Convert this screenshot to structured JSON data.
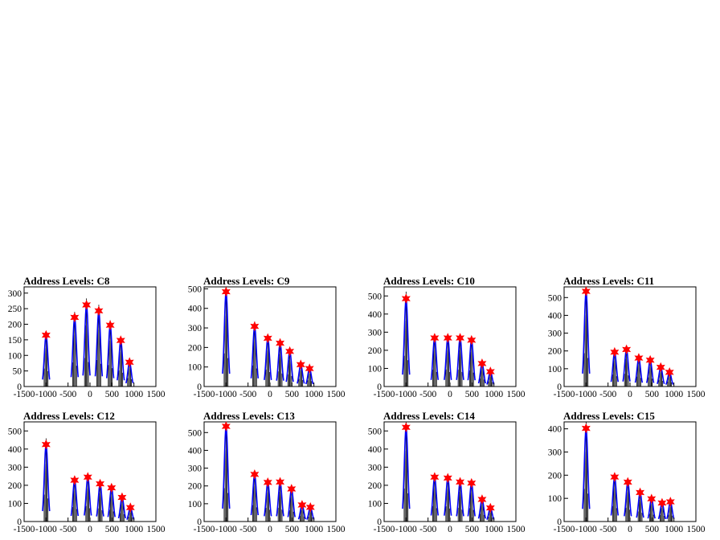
{
  "figure": {
    "background": "#ffffff",
    "colors": {
      "frame": "#000000",
      "histogram": "#000000",
      "fit": "#0000ff",
      "peak_marker": "#ff0000"
    }
  },
  "chart_data": [
    {
      "type": "line",
      "title": "Address Levels: C8",
      "xlim": [
        -1500,
        1500
      ],
      "ylim": [
        0,
        320
      ],
      "xticks": [
        -1500,
        -1000,
        -500,
        0,
        500,
        1000,
        1500
      ],
      "yticks": [
        0,
        50,
        100,
        150,
        200,
        250,
        300
      ],
      "peaks": [
        {
          "x": -1000,
          "y": 165
        },
        {
          "x": -350,
          "y": 222
        },
        {
          "x": -80,
          "y": 262
        },
        {
          "x": 200,
          "y": 243
        },
        {
          "x": 460,
          "y": 197
        },
        {
          "x": 700,
          "y": 148
        },
        {
          "x": 900,
          "y": 78
        }
      ]
    },
    {
      "type": "line",
      "title": "Address Levels: C9",
      "xlim": [
        -1500,
        1500
      ],
      "ylim": [
        0,
        510
      ],
      "xticks": [
        -1500,
        -1000,
        -500,
        0,
        500,
        1000,
        1500
      ],
      "yticks": [
        0,
        100,
        200,
        300,
        400,
        500
      ],
      "peaks": [
        {
          "x": -1000,
          "y": 485
        },
        {
          "x": -350,
          "y": 308
        },
        {
          "x": -50,
          "y": 247
        },
        {
          "x": 230,
          "y": 222
        },
        {
          "x": 450,
          "y": 180
        },
        {
          "x": 700,
          "y": 112
        },
        {
          "x": 900,
          "y": 92
        }
      ]
    },
    {
      "type": "line",
      "title": "Address Levels: C10",
      "xlim": [
        -1500,
        1500
      ],
      "ylim": [
        0,
        550
      ],
      "xticks": [
        -1500,
        -1000,
        -500,
        0,
        500,
        1000,
        1500
      ],
      "yticks": [
        0,
        100,
        200,
        300,
        400,
        500
      ],
      "peaks": [
        {
          "x": -1000,
          "y": 485
        },
        {
          "x": -350,
          "y": 268
        },
        {
          "x": -50,
          "y": 268
        },
        {
          "x": 230,
          "y": 268
        },
        {
          "x": 490,
          "y": 256
        },
        {
          "x": 730,
          "y": 127
        },
        {
          "x": 920,
          "y": 82
        }
      ]
    },
    {
      "type": "line",
      "title": "Address Levels: C11",
      "xlim": [
        -1500,
        1500
      ],
      "ylim": [
        0,
        560
      ],
      "xticks": [
        -1500,
        -1000,
        -500,
        0,
        500,
        1000,
        1500
      ],
      "yticks": [
        0,
        100,
        200,
        300,
        400,
        500
      ],
      "peaks": [
        {
          "x": -1000,
          "y": 535
        },
        {
          "x": -350,
          "y": 193
        },
        {
          "x": -80,
          "y": 208
        },
        {
          "x": 200,
          "y": 160
        },
        {
          "x": 460,
          "y": 148
        },
        {
          "x": 700,
          "y": 108
        },
        {
          "x": 900,
          "y": 80
        }
      ]
    },
    {
      "type": "line",
      "title": "Address Levels: C12",
      "xlim": [
        -1500,
        1500
      ],
      "ylim": [
        0,
        550
      ],
      "xticks": [
        -1500,
        -1000,
        -500,
        0,
        500,
        1000,
        1500
      ],
      "yticks": [
        0,
        100,
        200,
        300,
        400,
        500
      ],
      "peaks": [
        {
          "x": -1000,
          "y": 425
        },
        {
          "x": -350,
          "y": 228
        },
        {
          "x": -50,
          "y": 245
        },
        {
          "x": 230,
          "y": 208
        },
        {
          "x": 490,
          "y": 186
        },
        {
          "x": 730,
          "y": 133
        },
        {
          "x": 920,
          "y": 77
        }
      ]
    },
    {
      "type": "line",
      "title": "Address Levels: C13",
      "xlim": [
        -1500,
        1500
      ],
      "ylim": [
        0,
        560
      ],
      "xticks": [
        -1500,
        -1000,
        -500,
        0,
        500,
        1000,
        1500
      ],
      "yticks": [
        0,
        100,
        200,
        300,
        400,
        500
      ],
      "peaks": [
        {
          "x": -1000,
          "y": 535
        },
        {
          "x": -350,
          "y": 265
        },
        {
          "x": -50,
          "y": 220
        },
        {
          "x": 230,
          "y": 222
        },
        {
          "x": 490,
          "y": 183
        },
        {
          "x": 730,
          "y": 93
        },
        {
          "x": 920,
          "y": 80
        }
      ]
    },
    {
      "type": "line",
      "title": "Address Levels: C14",
      "xlim": [
        -1500,
        1500
      ],
      "ylim": [
        0,
        550
      ],
      "xticks": [
        -1500,
        -1000,
        -500,
        0,
        500,
        1000,
        1500
      ],
      "yticks": [
        0,
        100,
        200,
        300,
        400,
        500
      ],
      "peaks": [
        {
          "x": -1000,
          "y": 520
        },
        {
          "x": -350,
          "y": 245
        },
        {
          "x": -50,
          "y": 240
        },
        {
          "x": 230,
          "y": 218
        },
        {
          "x": 490,
          "y": 212
        },
        {
          "x": 730,
          "y": 122
        },
        {
          "x": 920,
          "y": 75
        }
      ]
    },
    {
      "type": "line",
      "title": "Address Levels: C15",
      "xlim": [
        -1500,
        1500
      ],
      "ylim": [
        0,
        430
      ],
      "xticks": [
        -1500,
        -1000,
        -500,
        0,
        500,
        1000,
        1500
      ],
      "yticks": [
        0,
        100,
        200,
        300,
        400
      ],
      "peaks": [
        {
          "x": -1000,
          "y": 402
        },
        {
          "x": -350,
          "y": 192
        },
        {
          "x": -50,
          "y": 170
        },
        {
          "x": 230,
          "y": 125
        },
        {
          "x": 490,
          "y": 98
        },
        {
          "x": 730,
          "y": 80
        },
        {
          "x": 920,
          "y": 85
        }
      ]
    }
  ]
}
